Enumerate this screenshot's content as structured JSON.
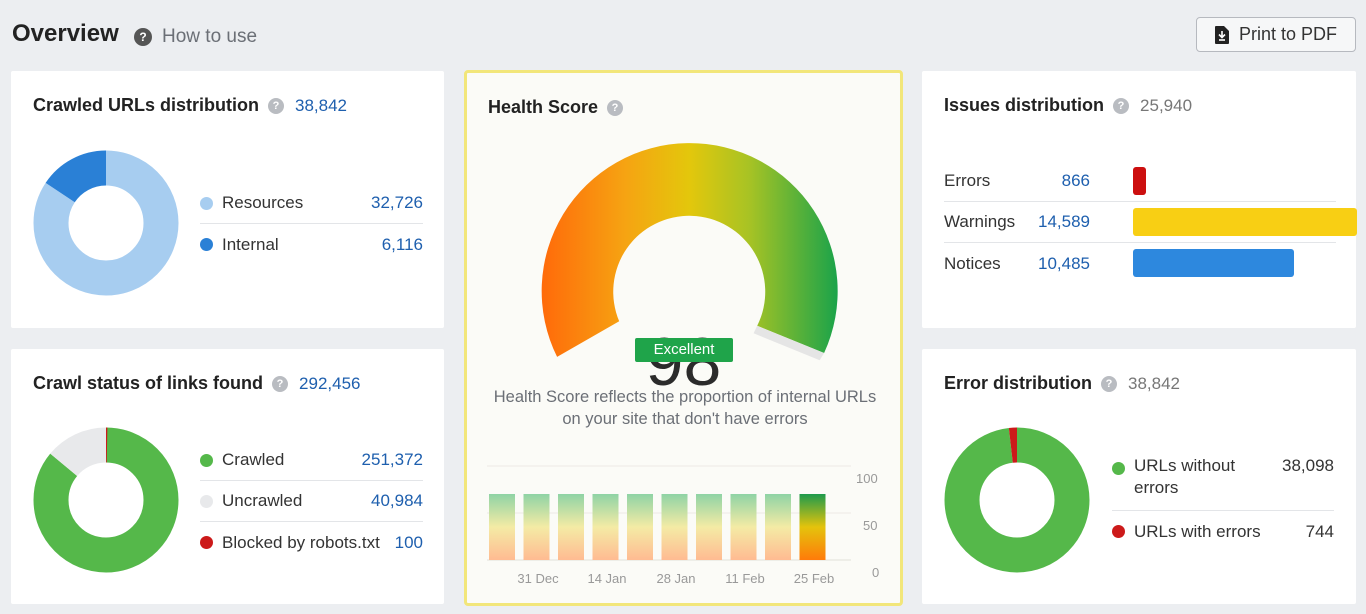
{
  "header": {
    "title": "Overview",
    "how_to_use": "How to use",
    "print_label": "Print to PDF"
  },
  "crawled_urls": {
    "title": "Crawled URLs distribution",
    "total": "38,842",
    "items": [
      {
        "label": "Resources",
        "value": "32,726",
        "color": "#a7cdf0"
      },
      {
        "label": "Internal",
        "value": "6,116",
        "color": "#2a80d6"
      }
    ]
  },
  "crawl_status": {
    "title": "Crawl status of links found",
    "total": "292,456",
    "items": [
      {
        "label": "Crawled",
        "value": "251,372",
        "color": "#55b84a"
      },
      {
        "label": "Uncrawled",
        "value": "40,984",
        "color": "#e8e9eb"
      },
      {
        "label": "Blocked by robots.txt",
        "value": "100",
        "color": "#cc1a1a"
      }
    ]
  },
  "health_score": {
    "title": "Health Score",
    "score": "98",
    "badge": "Excellent",
    "description": "Health Score reflects the proportion of internal URLs on your site that don't have errors",
    "history": {
      "y_ticks": [
        "100",
        "50",
        "0"
      ],
      "x_labels": [
        "31 Dec",
        "14 Jan",
        "28 Jan",
        "11 Feb",
        "25 Feb"
      ],
      "bars": 10
    }
  },
  "issues": {
    "title": "Issues distribution",
    "total": "25,940",
    "items": [
      {
        "label": "Errors",
        "value": "866",
        "raw": 866,
        "color": "#cc0f0f"
      },
      {
        "label": "Warnings",
        "value": "14,589",
        "raw": 14589,
        "color": "#f8cf14"
      },
      {
        "label": "Notices",
        "value": "10,485",
        "raw": 10485,
        "color": "#2d88de"
      }
    ]
  },
  "errors": {
    "title": "Error distribution",
    "total": "38,842",
    "items": [
      {
        "label": "URLs without errors",
        "value": "38,098",
        "color": "#55b84a"
      },
      {
        "label": "URLs with errors",
        "value": "744",
        "color": "#cc1a1a"
      }
    ]
  }
}
